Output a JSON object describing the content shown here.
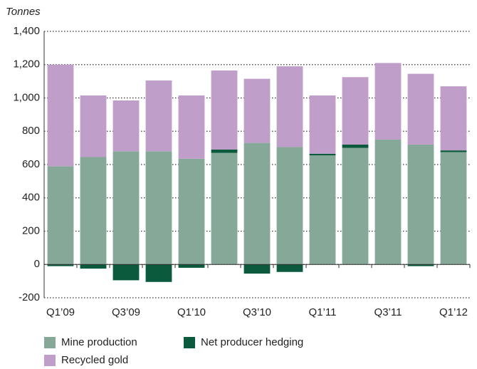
{
  "chart_data": {
    "type": "stacked-bar",
    "y_label": "Tonnes",
    "categories": [
      "Q1’09",
      null,
      "Q3’09",
      null,
      "Q1’10",
      null,
      "Q3’10",
      null,
      "Q1’11",
      null,
      "Q3’11",
      null,
      "Q1’12"
    ],
    "series": [
      {
        "name": "Mine production",
        "color": "#86a898",
        "values": [
          590,
          645,
          680,
          680,
          635,
          670,
          730,
          705,
          655,
          700,
          750,
          720,
          675
        ]
      },
      {
        "name": "Net producer hedging",
        "color": "#0b5a3e",
        "values": [
          -10,
          -25,
          -95,
          -105,
          -20,
          20,
          -55,
          -45,
          10,
          20,
          0,
          -10,
          10
        ]
      },
      {
        "name": "Recycled gold",
        "color": "#bf9ec9",
        "values": [
          610,
          370,
          305,
          425,
          380,
          475,
          385,
          485,
          350,
          405,
          460,
          425,
          385
        ]
      }
    ],
    "ylim": [
      -200,
      1400
    ],
    "yticks": [
      -200,
      0,
      200,
      400,
      600,
      800,
      {
        "value": 1000,
        "label": "1,000"
      },
      {
        "value": 1200,
        "label": "1,200"
      },
      {
        "value": 1400,
        "label": "1,400"
      }
    ],
    "grid": true
  }
}
